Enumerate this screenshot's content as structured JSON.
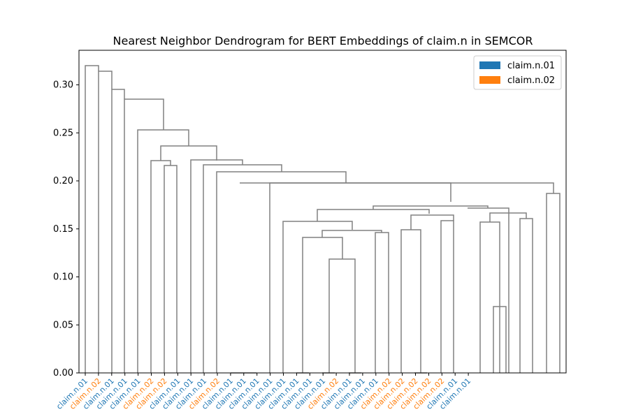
{
  "chart_data": {
    "type": "dendrogram",
    "title": "Nearest Neighbor Dendrogram for BERT Embeddings of claim.n in SEMCOR",
    "xlabel": "",
    "ylabel": "",
    "ylim": [
      0,
      0.336
    ],
    "yticks": [
      0.0,
      0.05,
      0.1,
      0.15,
      0.2,
      0.25,
      0.3
    ],
    "ytick_labels": [
      "0.00",
      "0.05",
      "0.10",
      "0.15",
      "0.20",
      "0.25",
      "0.30"
    ],
    "grid": false,
    "legend": {
      "placement": "top-right",
      "entries": [
        {
          "label": "claim.n.01",
          "color": "#1f77b4"
        },
        {
          "label": "claim.n.02",
          "color": "#ff7f0e"
        }
      ]
    },
    "link_color": "#808080",
    "leaves": [
      {
        "label": "claim.n.01",
        "sense": 1
      },
      {
        "label": "claim.n.02",
        "sense": 2
      },
      {
        "label": "claim.n.01",
        "sense": 1
      },
      {
        "label": "claim.n.01",
        "sense": 1
      },
      {
        "label": "claim.n.01",
        "sense": 1
      },
      {
        "label": "claim.n.02",
        "sense": 2
      },
      {
        "label": "claim.n.02",
        "sense": 2
      },
      {
        "label": "claim.n.01",
        "sense": 1
      },
      {
        "label": "claim.n.01",
        "sense": 1
      },
      {
        "label": "claim.n.01",
        "sense": 1
      },
      {
        "label": "claim.n.02",
        "sense": 2
      },
      {
        "label": "claim.n.01",
        "sense": 1
      },
      {
        "label": "claim.n.01",
        "sense": 1
      },
      {
        "label": "claim.n.01",
        "sense": 1
      },
      {
        "label": "claim.n.01",
        "sense": 1
      },
      {
        "label": "claim.n.01",
        "sense": 1
      },
      {
        "label": "claim.n.01",
        "sense": 1
      },
      {
        "label": "claim.n.01",
        "sense": 1
      },
      {
        "label": "claim.n.01",
        "sense": 1
      },
      {
        "label": "claim.n.02",
        "sense": 2
      },
      {
        "label": "claim.n.01",
        "sense": 1
      },
      {
        "label": "claim.n.01",
        "sense": 1
      },
      {
        "label": "claim.n.01",
        "sense": 1
      },
      {
        "label": "claim.n.02",
        "sense": 2
      },
      {
        "label": "claim.n.02",
        "sense": 2
      },
      {
        "label": "claim.n.02",
        "sense": 2
      },
      {
        "label": "claim.n.02",
        "sense": 2
      },
      {
        "label": "claim.n.02",
        "sense": 2
      },
      {
        "label": "claim.n.01",
        "sense": 1
      },
      {
        "label": "claim.n.01",
        "sense": 1
      }
    ],
    "merges": [
      {
        "left": 8,
        "right": 9,
        "height": 0.0
      },
      {
        "left": 13,
        "right": 14,
        "height": 0.0
      },
      {
        "left": 15,
        "right": 16,
        "height": 0.0
      },
      {
        "left": 17,
        "right": 18,
        "height": 0.0
      },
      {
        "left": 21,
        "right": 22,
        "height": 0.0
      },
      {
        "left": 25,
        "right": 26,
        "height": 0.069
      },
      {
        "left": 35,
        "right": 36,
        "height": 0.118
      },
      {
        "left": 12,
        "right": 31,
        "height": 0.141
      },
      {
        "left": 37,
        "right": 19,
        "height": 0.146
      },
      {
        "left": 20,
        "right": 34,
        "height": 0.149
      },
      {
        "left": 24,
        "right": 23,
        "height": 0.158
      },
      {
        "left": 38,
        "right": 33,
        "height": 0.157
      },
      {
        "left": 39,
        "right": 41,
        "height": 0.149
      },
      {
        "left": 27,
        "right": 28,
        "height": 0.161
      },
      {
        "left": 11,
        "right": 42,
        "height": 0.158
      },
      {
        "left": 43,
        "right": 40,
        "height": 0.164
      },
      {
        "left": 29,
        "right": 30,
        "height": 0.187
      },
      {
        "left": 41,
        "right": 43,
        "height": 0.167
      },
      {
        "left": 0,
        "right": 0,
        "height": 0.0
      }
    ],
    "links": [
      {
        "x1": 1,
        "x2": 2,
        "h1": 0.0,
        "h2": 0.0,
        "top": 0.32
      },
      {
        "x1": 2,
        "x2": 3,
        "h1": 0.0,
        "h2": 0.0,
        "top": 0.313
      },
      {
        "x1": 3,
        "x2": 4,
        "h1": 0.0,
        "h2": 0.0,
        "top": 0.295
      },
      {
        "x1": 4,
        "x2": 5,
        "h1": 0.0,
        "h2": 0.0,
        "top": 0.285
      },
      {
        "x1": 6,
        "x2": 6.5,
        "h1": 0.221,
        "h2": 0.216,
        "top": 0.221
      },
      {
        "x1": 7,
        "x2": 6.5,
        "h1": 0.0,
        "h2": 0.0,
        "top": 0.216
      },
      {
        "x1": 6.25,
        "x2": 9.5,
        "h1": 0.221,
        "h2": 0.222,
        "top": 0.236
      },
      {
        "x1": 5,
        "x2": 7.875,
        "h1": 0.0,
        "h2": 0.236,
        "top": 0.253
      },
      {
        "x1": 8,
        "x2": 11,
        "h1": 0.0,
        "h2": 0.217,
        "top": 0.222
      },
      {
        "x1": 9,
        "x2": 13,
        "h1": 0.0,
        "h2": 0.209,
        "top": 0.217
      },
      {
        "x1": 10,
        "x2": 21,
        "h1": 0.0,
        "h2": 0.197,
        "top": 0.209
      },
      {
        "x1": 11.5,
        "x2": 21,
        "h1": 0.0,
        "h2": 0.198,
        "top": 0.197
      },
      {
        "x1": 14.5,
        "x2": 27.5,
        "h1": 0.178,
        "h2": 0.197,
        "top": 0.197
      },
      {
        "x1": 13,
        "x2": 23,
        "h1": 0.0,
        "h2": 0.174,
        "top": 0.178
      },
      {
        "x1": 17,
        "x2": 27.5,
        "h1": 0.0,
        "h2": 0.0,
        "top": 0.0
      },
      {
        "x1": 19,
        "x2": 22,
        "h1": 0.0,
        "h2": 0.17,
        "top": 0.173
      },
      {
        "x1": 19,
        "x2": 22,
        "h1": 0.0,
        "h2": 0.0,
        "top": 0.0
      }
    ],
    "x_positions": [
      1,
      2,
      3,
      4,
      5,
      6,
      7,
      8,
      9,
      10,
      11,
      12,
      13,
      14,
      15,
      16,
      17,
      18,
      19,
      20,
      21,
      22,
      23,
      24,
      25,
      26,
      27,
      28,
      29,
      30
    ]
  }
}
